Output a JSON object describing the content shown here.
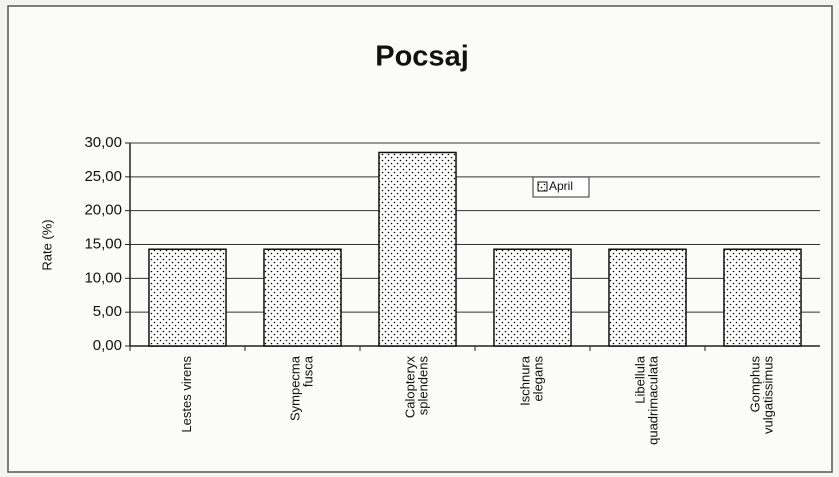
{
  "chart_data": {
    "type": "bar",
    "title": "Pocsaj",
    "y_label": "Rate (%)",
    "categories": [
      [
        "Lestes virens"
      ],
      [
        "Sympecma",
        "fusca"
      ],
      [
        "Calopteryx",
        "splendens"
      ],
      [
        "Ischnura",
        "elegans"
      ],
      [
        "Libellula",
        "quadrimaculata"
      ],
      [
        "Gomphus",
        "vulgatissimus"
      ]
    ],
    "series": [
      {
        "name": "April",
        "color": "#000000",
        "values": [
          14.3,
          14.3,
          28.6,
          14.3,
          14.3,
          14.3
        ]
      }
    ],
    "ylim": [
      0,
      30
    ],
    "yticks": [
      {
        "value": 0,
        "label": "0,00"
      },
      {
        "value": 5,
        "label": "5,00"
      },
      {
        "value": 10,
        "label": "10,00"
      },
      {
        "value": 15,
        "label": "15,00"
      },
      {
        "value": 20,
        "label": "20,00"
      },
      {
        "value": 25,
        "label": "25,00"
      },
      {
        "value": 30,
        "label": "30,00"
      }
    ],
    "grid": true
  }
}
